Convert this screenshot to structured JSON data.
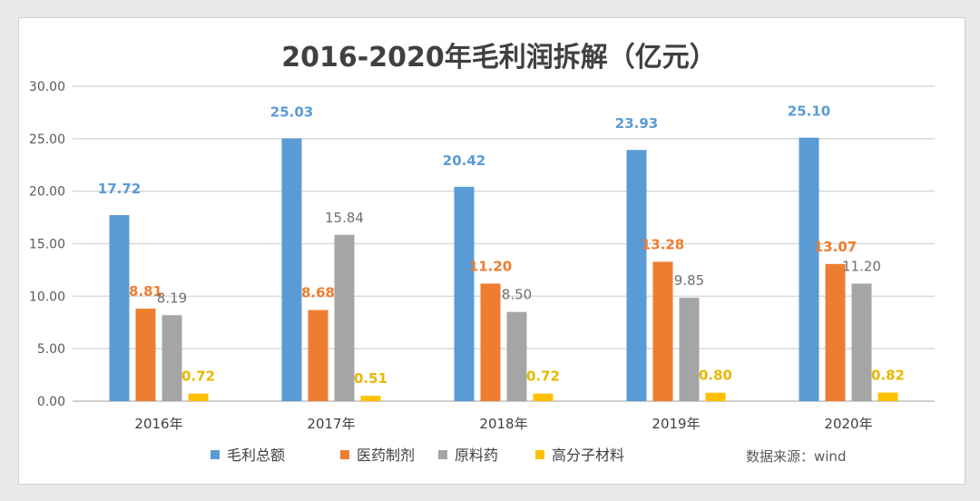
{
  "chart_data": {
    "type": "bar",
    "title": "2016-2020年毛利润拆解（亿元）",
    "categories": [
      "2016年",
      "2017年",
      "2018年",
      "2019年",
      "2020年"
    ],
    "series": [
      {
        "name": "毛利总额",
        "color": "#5b9bd5",
        "values": [
          17.72,
          25.03,
          20.42,
          23.93,
          25.1
        ]
      },
      {
        "name": "医药制剂",
        "color": "#ed7d31",
        "values": [
          8.81,
          8.68,
          11.2,
          13.28,
          13.07
        ]
      },
      {
        "name": "原料药",
        "color": "#a5a5a5",
        "values": [
          8.19,
          15.84,
          8.5,
          9.85,
          11.2
        ]
      },
      {
        "name": "高分子材料",
        "color": "#ffc000",
        "values": [
          0.72,
          0.51,
          0.72,
          0.8,
          0.82
        ]
      }
    ],
    "yticks": [
      "0.00",
      "5.00",
      "10.00",
      "15.00",
      "20.00",
      "25.00",
      "30.00"
    ],
    "ylim": [
      0,
      30
    ],
    "grid": true,
    "legend": "bottom",
    "source": "数据来源：wind"
  }
}
